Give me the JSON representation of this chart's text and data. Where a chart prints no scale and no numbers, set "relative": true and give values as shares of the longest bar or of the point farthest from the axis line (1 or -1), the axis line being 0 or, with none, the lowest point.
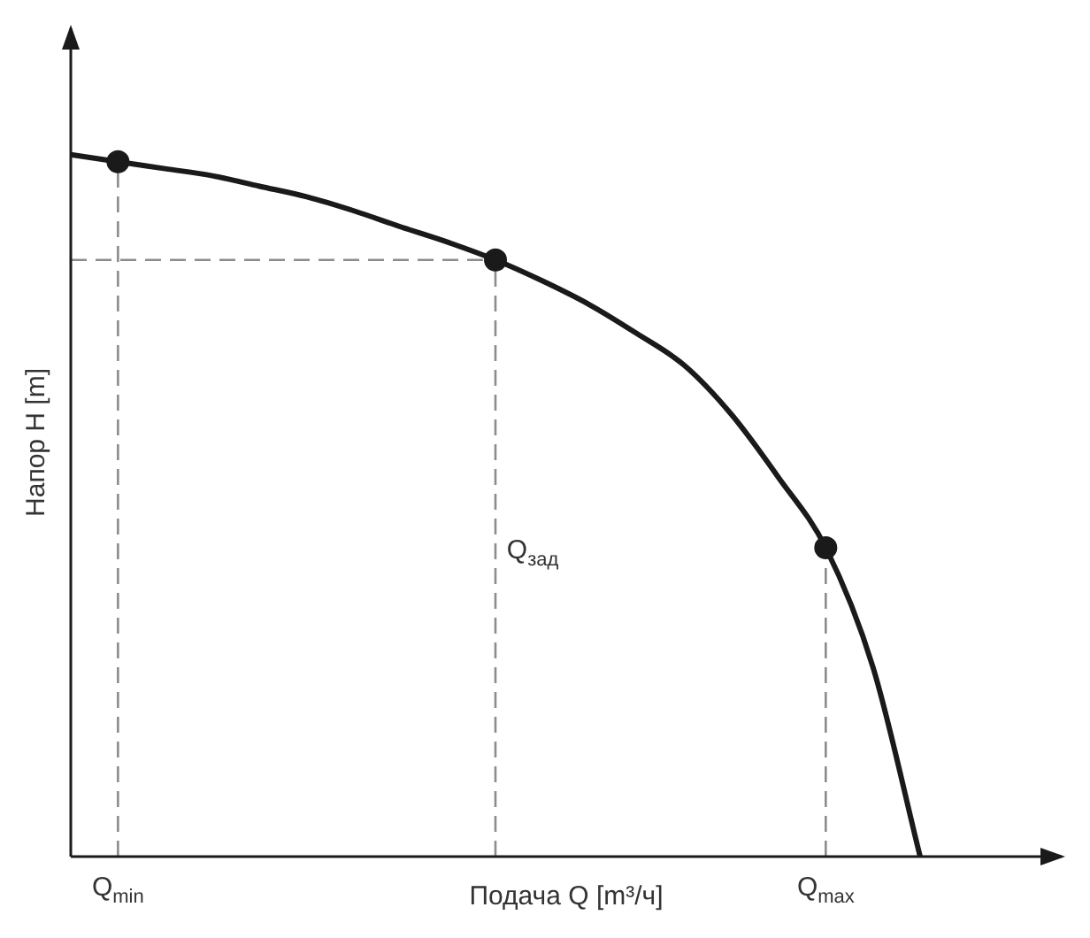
{
  "chart_data": {
    "type": "line",
    "relative": true,
    "xlabel": "Подача Q [m³/ч]",
    "ylabel": "Напор H [m]",
    "categories": [
      null,
      "Q$_{min}$",
      null,
      null,
      null,
      null,
      null,
      null,
      null,
      null,
      null,
      null,
      null,
      null,
      null,
      null,
      "Q$_{max}$",
      null,
      null,
      null,
      null,
      null
    ],
    "tick_labels": "x",
    "grid": false,
    "legend": false,
    "series": [
      {
        "color": "#1a1a1a",
        "marker": "none",
        "line_style": "solid",
        "values": [
          1,
          0.99,
          0.98,
          0.97,
          0.955,
          0.94,
          0.92,
          0.897,
          0.875,
          0.85,
          0.82,
          0.786,
          0.745,
          0.7,
          0.63,
          0.54,
          0.44,
          0.27,
          0,
          null,
          null,
          null
        ]
      },
      {
        "type": "scatter",
        "color": "#1a1a1a",
        "marker": "circle",
        "values": [
          null,
          0.99,
          null,
          null,
          null,
          null,
          null,
          null,
          null,
          0.85,
          null,
          null,
          null,
          null,
          null,
          null,
          0.44,
          null,
          null,
          null,
          null,
          null
        ]
      },
      {
        "color": "#8c8c8c",
        "marker": "none",
        "line_style": "dashed",
        "values": [
          0.85,
          0.85,
          0.85,
          0.85,
          0.85,
          0.85,
          0.85,
          0.85,
          0.85,
          0.85,
          null,
          null,
          null,
          null,
          null,
          null,
          null,
          null,
          null,
          null,
          null,
          null
        ]
      }
    ],
    "annotations": [
      "Q$_{зад}$"
    ]
  }
}
